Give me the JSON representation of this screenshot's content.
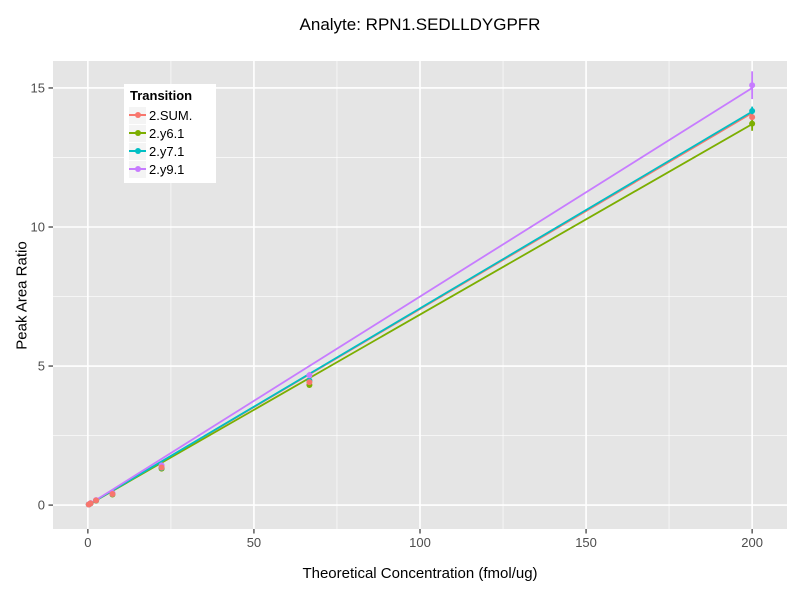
{
  "chart_data": {
    "type": "line",
    "title": "Analyte: RPN1.SEDLLDYGPFR",
    "xlabel": "Theoretical Concentration (fmol/ug)",
    "ylabel": "Peak Area Ratio",
    "xlim": [
      -10.5,
      210.5
    ],
    "ylim": [
      -0.86,
      15.97
    ],
    "xticks": [
      0,
      50,
      100,
      150,
      200
    ],
    "yticks": [
      0,
      5,
      10,
      15
    ],
    "x_minor": [
      25,
      75,
      125,
      175
    ],
    "y_minor": [
      2.5,
      7.5,
      12.5
    ],
    "grid": true,
    "legend_title": "Transition",
    "legend_position": "top-left-inside",
    "panel_bg": "#E5E5E5",
    "grid_color": "#FFFFFF",
    "tick_color": "#333333",
    "tick_label_color": "#4D4D4D",
    "x": [
      0.27,
      0.82,
      2.47,
      7.41,
      22.2,
      66.7,
      200
    ],
    "series": [
      {
        "name": "2.SUM.",
        "color": "#F8766D",
        "values": [
          0.02,
          0.06,
          0.17,
          0.4,
          1.35,
          4.42,
          13.95
        ],
        "errors": [
          0,
          0,
          0,
          0,
          0,
          0.06,
          0.1
        ],
        "fit_end": 14.1
      },
      {
        "name": "2.y6.1",
        "color": "#7CAE00",
        "values": [
          0.02,
          0.06,
          0.16,
          0.38,
          1.31,
          4.32,
          13.72
        ],
        "errors": [
          0,
          0,
          0,
          0,
          0,
          0.06,
          0.26
        ],
        "fit_end": 13.7
      },
      {
        "name": "2.y7.1",
        "color": "#00BFC4",
        "values": [
          0.02,
          0.06,
          0.17,
          0.4,
          1.34,
          4.48,
          14.17
        ],
        "errors": [
          0,
          0,
          0,
          0,
          0,
          0.08,
          0.16
        ],
        "fit_end": 14.15
      },
      {
        "name": "2.y9.1",
        "color": "#C77CFF",
        "values": [
          0.02,
          0.07,
          0.18,
          0.43,
          1.43,
          4.67,
          15.1
        ],
        "errors": [
          0,
          0,
          0,
          0,
          0,
          0.12,
          0.5
        ],
        "fit_end": 15.0
      }
    ],
    "line_draw_order": [
      0,
      1,
      2,
      3
    ],
    "point_draw_order": [
      1,
      2,
      3,
      0
    ]
  }
}
